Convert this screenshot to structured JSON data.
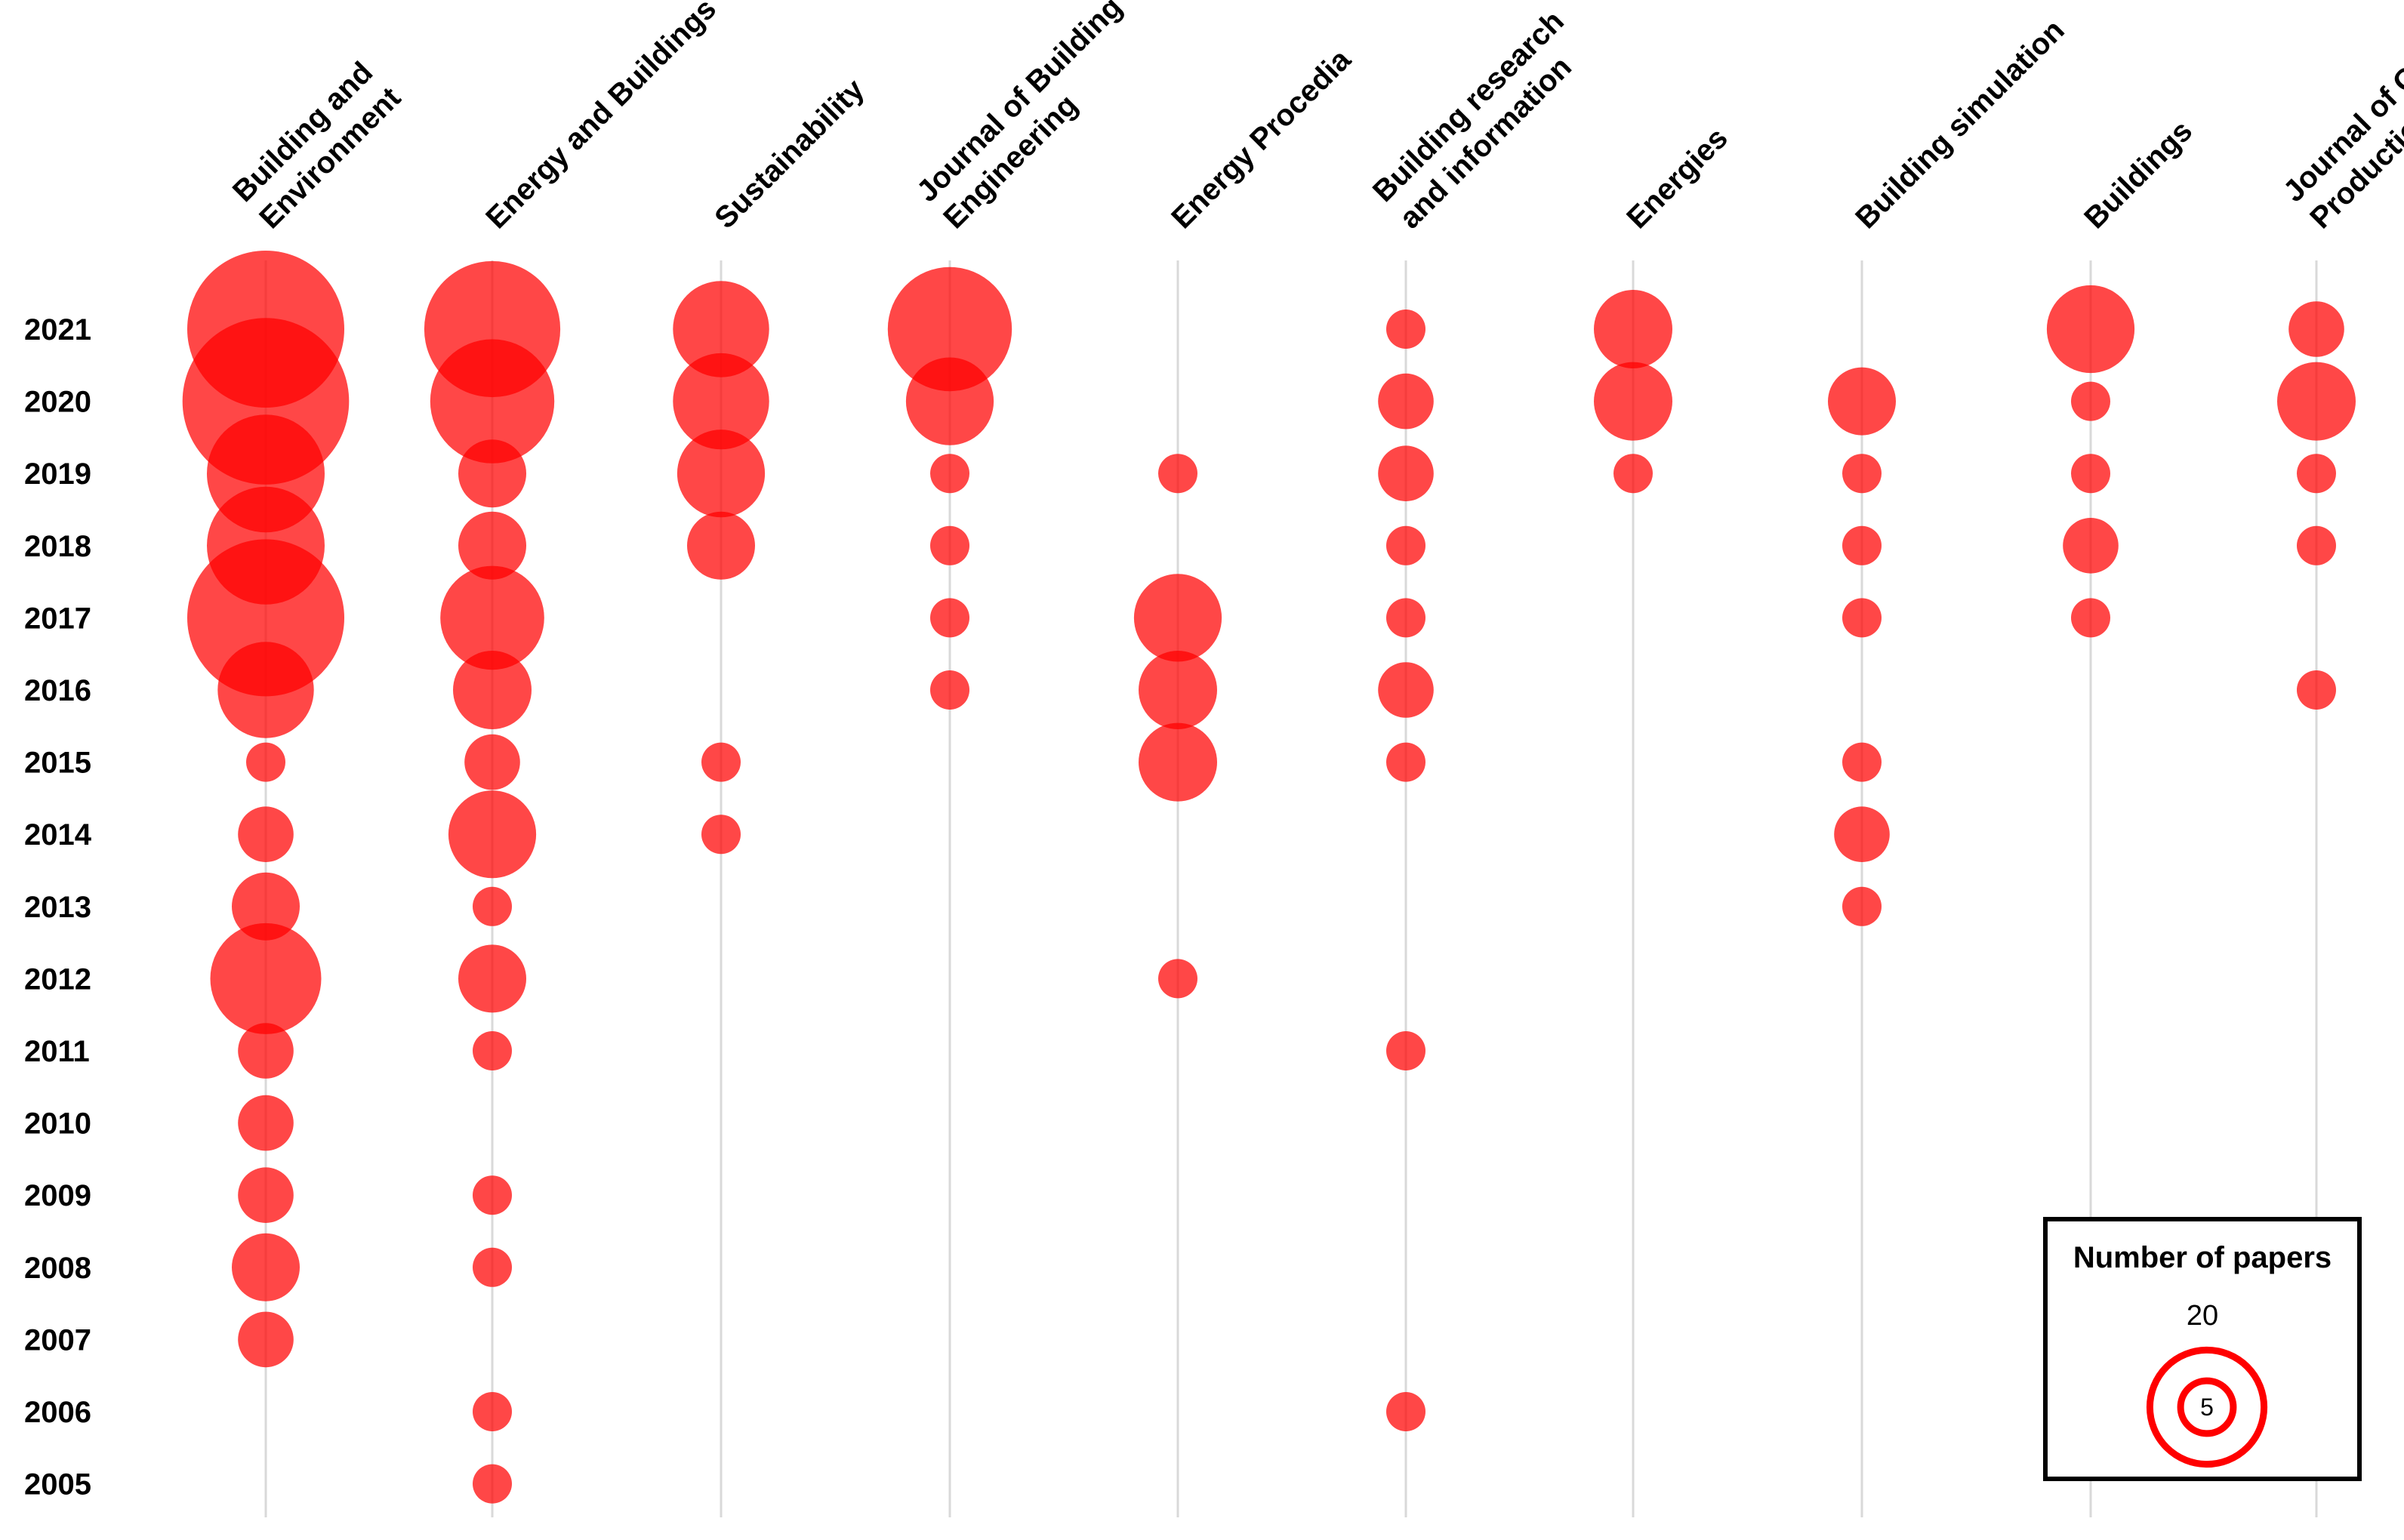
{
  "chart_data": {
    "type": "bubble",
    "title": "",
    "colors": {
      "bubble": "#ff0000",
      "gridline": "#d9d9d9"
    },
    "journals": [
      {
        "label_lines": [
          "Building and",
          "Environment"
        ]
      },
      {
        "label_lines": [
          "Energy and Buildings"
        ]
      },
      {
        "label_lines": [
          "Sustainability"
        ]
      },
      {
        "label_lines": [
          "Journal of Building",
          "Engineering"
        ]
      },
      {
        "label_lines": [
          "Energy Procedia"
        ]
      },
      {
        "label_lines": [
          "Building research",
          "and information"
        ]
      },
      {
        "label_lines": [
          "Energies"
        ]
      },
      {
        "label_lines": [
          "Building simulation"
        ]
      },
      {
        "label_lines": [
          "Buildings"
        ]
      },
      {
        "label_lines": [
          "Journal of Cleaner",
          "Production"
        ]
      }
    ],
    "years": [
      "2021",
      "2020",
      "2019",
      "2018",
      "2017",
      "2016",
      "2015",
      "2014",
      "2013",
      "2012",
      "2011",
      "2010",
      "2009",
      "2008",
      "2007",
      "2006",
      "2005"
    ],
    "values": [
      [
        16,
        18,
        9,
        9,
        16,
        6,
        1,
        2,
        3,
        8,
        2,
        2,
        2,
        3,
        2,
        0,
        0
      ],
      [
        12,
        10,
        3,
        3,
        7,
        4,
        2,
        5,
        1,
        3,
        1,
        0,
        1,
        1,
        0,
        1,
        1
      ],
      [
        6,
        6,
        5,
        3,
        0,
        0,
        1,
        1,
        0,
        0,
        0,
        0,
        0,
        0,
        0,
        0,
        0
      ],
      [
        10,
        5,
        1,
        1,
        1,
        1,
        0,
        0,
        0,
        0,
        0,
        0,
        0,
        0,
        0,
        0,
        0
      ],
      [
        0,
        0,
        1,
        0,
        5,
        4,
        4,
        0,
        0,
        1,
        0,
        0,
        0,
        0,
        0,
        0,
        0
      ],
      [
        1,
        2,
        2,
        1,
        1,
        2,
        1,
        0,
        0,
        0,
        1,
        0,
        0,
        0,
        0,
        1,
        0
      ],
      [
        4,
        4,
        1,
        0,
        0,
        0,
        0,
        0,
        0,
        0,
        0,
        0,
        0,
        0,
        0,
        0,
        0
      ],
      [
        0,
        3,
        1,
        1,
        1,
        0,
        1,
        2,
        1,
        0,
        0,
        0,
        0,
        0,
        0,
        0,
        0
      ],
      [
        5,
        1,
        1,
        2,
        1,
        0,
        0,
        0,
        0,
        0,
        0,
        0,
        0,
        0,
        0,
        0,
        0
      ],
      [
        2,
        4,
        1,
        1,
        0,
        1,
        0,
        0,
        0,
        0,
        0,
        0,
        0,
        0,
        0,
        0,
        0
      ]
    ],
    "legend": {
      "title": "Number of papers",
      "large_value": 20,
      "small_value": 5,
      "large_label": "20",
      "small_label": "5"
    }
  }
}
